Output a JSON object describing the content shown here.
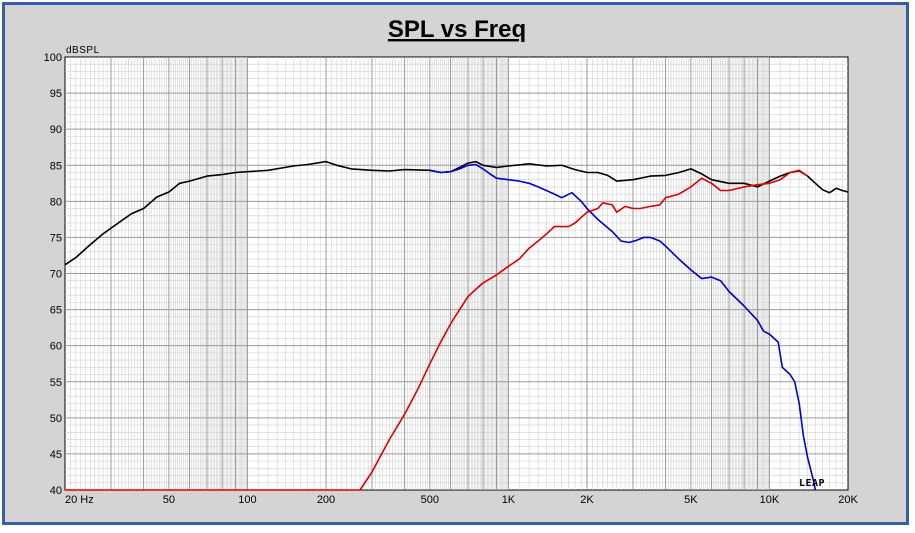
{
  "chart_data": {
    "type": "line",
    "title": "SPL vs Freq",
    "ylabel": "dBSPL",
    "xlabel": "",
    "xscale": "log",
    "xlim": [
      20,
      20000
    ],
    "ylim": [
      40,
      100
    ],
    "grid": true,
    "yticks": [
      "100",
      "95",
      "90",
      "85",
      "80",
      "75",
      "70",
      "65",
      "60",
      "55",
      "50",
      "45",
      "40"
    ],
    "xticks": [
      {
        "value": 20,
        "label": "20  Hz"
      },
      {
        "value": 50,
        "label": "50"
      },
      {
        "value": 100,
        "label": "100"
      },
      {
        "value": 200,
        "label": "200"
      },
      {
        "value": 500,
        "label": "500"
      },
      {
        "value": 1000,
        "label": "1K"
      },
      {
        "value": 2000,
        "label": "2K"
      },
      {
        "value": 5000,
        "label": "5K"
      },
      {
        "value": 10000,
        "label": "10K"
      },
      {
        "value": 20000,
        "label": "20K"
      }
    ],
    "series": [
      {
        "color": "#000000",
        "points": [
          [
            20,
            71.2
          ],
          [
            22,
            72.2
          ],
          [
            25,
            74.0
          ],
          [
            28,
            75.5
          ],
          [
            32,
            77.0
          ],
          [
            36,
            78.3
          ],
          [
            40,
            79.0
          ],
          [
            45,
            80.6
          ],
          [
            50,
            81.3
          ],
          [
            55,
            82.5
          ],
          [
            60,
            82.8
          ],
          [
            70,
            83.5
          ],
          [
            80,
            83.7
          ],
          [
            90,
            84.0
          ],
          [
            100,
            84.1
          ],
          [
            120,
            84.3
          ],
          [
            150,
            84.9
          ],
          [
            170,
            85.1
          ],
          [
            200,
            85.5
          ],
          [
            220,
            85.0
          ],
          [
            250,
            84.5
          ],
          [
            300,
            84.3
          ],
          [
            350,
            84.2
          ],
          [
            400,
            84.4
          ],
          [
            500,
            84.3
          ],
          [
            550,
            84.0
          ],
          [
            600,
            84.1
          ],
          [
            650,
            84.7
          ],
          [
            700,
            85.3
          ],
          [
            750,
            85.5
          ],
          [
            800,
            85.0
          ],
          [
            900,
            84.7
          ],
          [
            1000,
            84.9
          ],
          [
            1200,
            85.2
          ],
          [
            1400,
            84.9
          ],
          [
            1600,
            85.0
          ],
          [
            1800,
            84.4
          ],
          [
            2000,
            84.0
          ],
          [
            2200,
            84.0
          ],
          [
            2400,
            83.6
          ],
          [
            2600,
            82.8
          ],
          [
            3000,
            83.0
          ],
          [
            3500,
            83.5
          ],
          [
            4000,
            83.6
          ],
          [
            4500,
            84.0
          ],
          [
            5000,
            84.5
          ],
          [
            5500,
            83.8
          ],
          [
            6000,
            83.0
          ],
          [
            7000,
            82.5
          ],
          [
            8000,
            82.5
          ],
          [
            9000,
            82.0
          ],
          [
            10000,
            82.8
          ],
          [
            11000,
            83.5
          ],
          [
            12000,
            84.0
          ],
          [
            13000,
            84.2
          ],
          [
            14000,
            83.5
          ],
          [
            15000,
            82.5
          ],
          [
            16000,
            81.6
          ],
          [
            17000,
            81.2
          ],
          [
            18000,
            81.8
          ],
          [
            19000,
            81.5
          ],
          [
            20000,
            81.3
          ]
        ]
      },
      {
        "color": "#0000cc",
        "points": [
          [
            500,
            84.3
          ],
          [
            550,
            84.0
          ],
          [
            600,
            84.1
          ],
          [
            650,
            84.5
          ],
          [
            700,
            85.0
          ],
          [
            750,
            85.1
          ],
          [
            800,
            84.5
          ],
          [
            850,
            83.8
          ],
          [
            900,
            83.2
          ],
          [
            1000,
            83.0
          ],
          [
            1100,
            82.8
          ],
          [
            1200,
            82.5
          ],
          [
            1300,
            82.0
          ],
          [
            1500,
            81.0
          ],
          [
            1600,
            80.5
          ],
          [
            1750,
            81.2
          ],
          [
            1900,
            80.0
          ],
          [
            2000,
            79.0
          ],
          [
            2200,
            77.5
          ],
          [
            2500,
            75.8
          ],
          [
            2700,
            74.5
          ],
          [
            2900,
            74.3
          ],
          [
            3100,
            74.6
          ],
          [
            3300,
            75.0
          ],
          [
            3500,
            75.0
          ],
          [
            3800,
            74.5
          ],
          [
            4000,
            73.8
          ],
          [
            4500,
            72.0
          ],
          [
            5000,
            70.5
          ],
          [
            5500,
            69.3
          ],
          [
            6000,
            69.5
          ],
          [
            6500,
            69.0
          ],
          [
            7000,
            67.5
          ],
          [
            8000,
            65.5
          ],
          [
            9000,
            63.5
          ],
          [
            9500,
            62.0
          ],
          [
            10000,
            61.6
          ],
          [
            10800,
            60.5
          ],
          [
            11200,
            57.0
          ],
          [
            12000,
            56.0
          ],
          [
            12500,
            55.0
          ],
          [
            13000,
            52.0
          ],
          [
            13500,
            47.5
          ],
          [
            14000,
            44.5
          ],
          [
            14700,
            41.5
          ],
          [
            15000,
            40.0
          ]
        ]
      },
      {
        "color": "#dd0000",
        "points": [
          [
            20,
            40.0
          ],
          [
            100,
            40.0
          ],
          [
            200,
            40.0
          ],
          [
            270,
            40.0
          ],
          [
            300,
            42.5
          ],
          [
            350,
            47.0
          ],
          [
            400,
            50.5
          ],
          [
            450,
            54.0
          ],
          [
            500,
            57.5
          ],
          [
            550,
            60.5
          ],
          [
            600,
            63.0
          ],
          [
            650,
            65.0
          ],
          [
            700,
            66.8
          ],
          [
            750,
            67.8
          ],
          [
            800,
            68.7
          ],
          [
            900,
            69.8
          ],
          [
            1000,
            71.0
          ],
          [
            1100,
            72.0
          ],
          [
            1200,
            73.5
          ],
          [
            1300,
            74.5
          ],
          [
            1400,
            75.5
          ],
          [
            1500,
            76.5
          ],
          [
            1700,
            76.5
          ],
          [
            1800,
            77.0
          ],
          [
            2000,
            78.5
          ],
          [
            2200,
            79.0
          ],
          [
            2300,
            79.8
          ],
          [
            2500,
            79.5
          ],
          [
            2600,
            78.5
          ],
          [
            2800,
            79.3
          ],
          [
            3000,
            79.0
          ],
          [
            3200,
            79.0
          ],
          [
            3500,
            79.3
          ],
          [
            3800,
            79.5
          ],
          [
            4000,
            80.5
          ],
          [
            4500,
            81.0
          ],
          [
            5000,
            82.0
          ],
          [
            5500,
            83.2
          ],
          [
            6000,
            82.5
          ],
          [
            6500,
            81.5
          ],
          [
            7000,
            81.5
          ],
          [
            8000,
            82.0
          ],
          [
            9000,
            82.3
          ],
          [
            10000,
            82.5
          ],
          [
            11000,
            83.0
          ],
          [
            12000,
            84.0
          ],
          [
            13000,
            84.3
          ],
          [
            14000,
            83.5
          ]
        ]
      }
    ]
  },
  "logo_text": "LEAP"
}
